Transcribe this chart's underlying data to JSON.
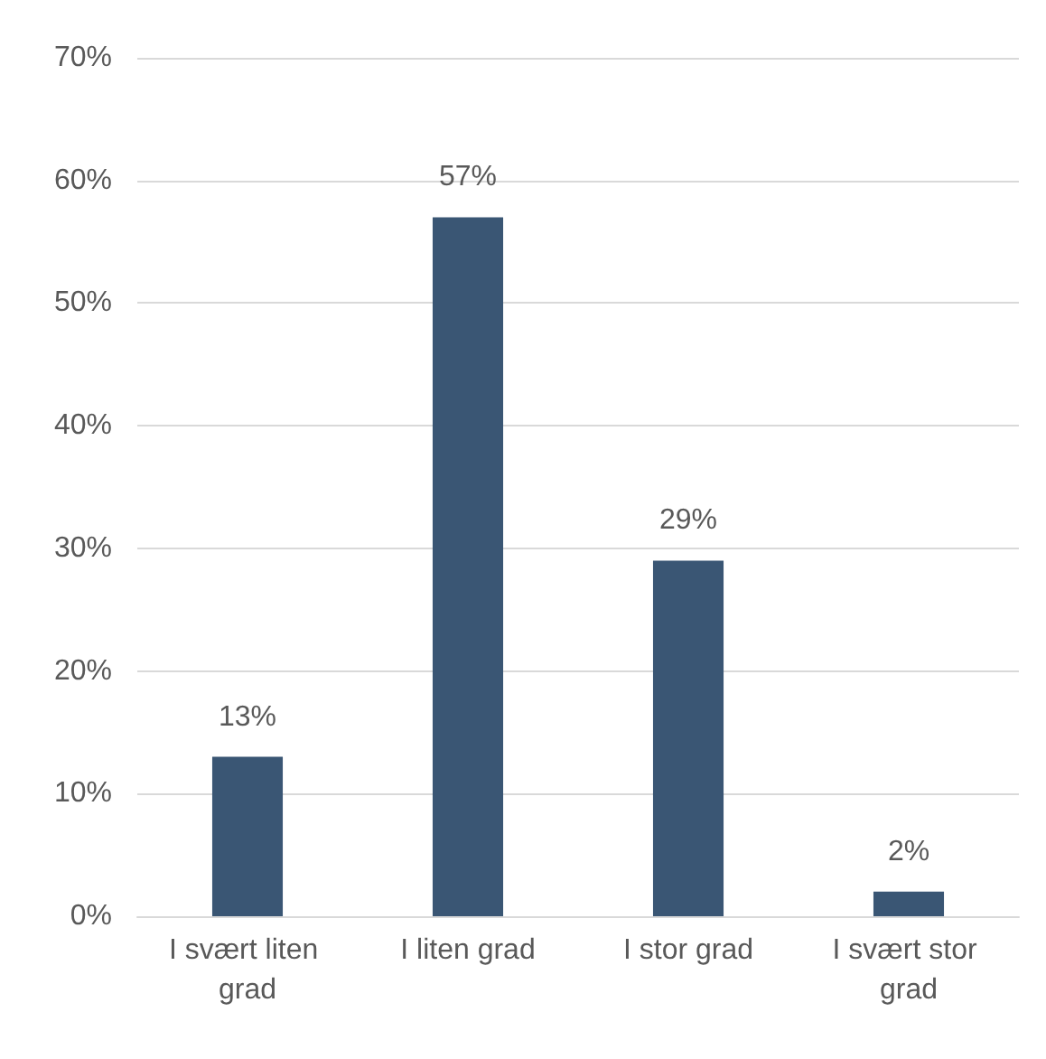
{
  "chart_data": {
    "type": "bar",
    "categories": [
      "I svært liten grad",
      "I liten grad",
      "I stor grad",
      "I svært stor grad"
    ],
    "values": [
      13,
      57,
      29,
      2
    ],
    "color": "#3a5674",
    "value_labels": [
      "13%",
      "57%",
      "29%",
      "2%"
    ],
    "ylim": [
      0,
      70
    ],
    "yticks": [
      {
        "value": 0,
        "label": "0%"
      },
      {
        "value": 10,
        "label": "10%"
      },
      {
        "value": 20,
        "label": "20%"
      },
      {
        "value": 30,
        "label": "30%"
      },
      {
        "value": 40,
        "label": "40%"
      },
      {
        "value": 50,
        "label": "50%"
      },
      {
        "value": 60,
        "label": "60%"
      },
      {
        "value": 70,
        "label": "70%"
      }
    ],
    "grid": true
  }
}
